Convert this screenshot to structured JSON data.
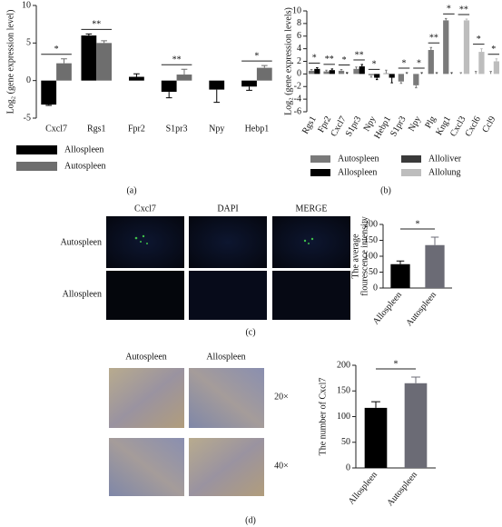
{
  "chart_data": [
    {
      "type": "bar",
      "ylabel": "Log₂ (gene expression level)",
      "categories": [
        "Cxcl7",
        "Rgs1",
        "Fpr2",
        "S1pr3",
        "Npy",
        "Hebp1"
      ],
      "series": [
        {
          "name": "Allospleen",
          "color": "#000000",
          "values": [
            -3.2,
            6.0,
            0.5,
            -1.5,
            -1.2,
            -0.8
          ],
          "errors": [
            0.1,
            0.2,
            0.4,
            0.8,
            1.7,
            0.5
          ]
        },
        {
          "name": "Autospleen",
          "color": "#6e6e6e",
          "values": [
            2.3,
            5.0,
            null,
            0.8,
            null,
            1.7
          ],
          "errors": [
            0.6,
            0.3,
            null,
            0.7,
            null,
            0.3
          ]
        }
      ],
      "significance": [
        "*",
        "**",
        null,
        "**",
        null,
        "*"
      ],
      "ylim": [
        -5,
        10
      ],
      "yticks": [
        -5,
        0,
        5,
        10
      ]
    },
    {
      "type": "bar",
      "ylabel": "Log₂ (gene expression levels)",
      "categories": [
        "Rgs1",
        "Fpr2",
        "Cxcl7",
        "S1pr3",
        "Npy",
        "Hebp1",
        "S1pr3",
        "Npy",
        "Plg",
        "Kng1",
        "Cxcl3",
        "Cxcl6",
        "Ccl9"
      ],
      "series": [
        {
          "name": "Autospleen",
          "color": "#7a7a7a",
          "values": [
            0.5,
            0.4,
            0.5,
            0.8,
            -0.2,
            0.1,
            -1.2,
            -1.8,
            3.8,
            8.5,
            0,
            0,
            0
          ],
          "errors": [
            0.2,
            0.2,
            0.2,
            0.3,
            0.3,
            0.5,
            0.3,
            0.4,
            0.4,
            0.3,
            0.2,
            0.4,
            0.4
          ]
        },
        {
          "name": "Alloliver",
          "color": "#3a3a3a",
          "values": [
            null,
            null,
            null,
            null,
            null,
            null,
            0,
            0,
            0,
            0,
            null,
            null,
            null
          ],
          "errors": [
            null,
            null,
            null,
            null,
            null,
            null,
            0.2,
            0.2,
            0.2,
            0.2,
            null,
            null,
            null
          ]
        },
        {
          "name": "Allospleen",
          "color": "#000000",
          "values": [
            0.8,
            0.6,
            0.0,
            1.2,
            -0.6,
            -0.6,
            null,
            null,
            null,
            null,
            null,
            null,
            null
          ],
          "errors": [
            0.2,
            0.2,
            0.2,
            0.3,
            0.3,
            0.8,
            null,
            null,
            null,
            null,
            null,
            null,
            null
          ]
        },
        {
          "name": "Allolung",
          "color": "#bdbdbd",
          "values": [
            null,
            null,
            null,
            null,
            null,
            null,
            null,
            null,
            null,
            null,
            8.5,
            3.5,
            2.0
          ],
          "errors": [
            null,
            null,
            null,
            null,
            null,
            null,
            null,
            null,
            null,
            null,
            0.2,
            0.5,
            0.4
          ]
        }
      ],
      "significance": [
        "*",
        "**",
        "*",
        "**",
        "*",
        null,
        "*",
        "*",
        "**",
        "*",
        "**",
        "*",
        "*"
      ],
      "ylim": [
        -6,
        10
      ],
      "yticks": [
        -6,
        -4,
        -2,
        0,
        2,
        4,
        6,
        8,
        10
      ]
    },
    {
      "type": "bar",
      "ylabel": [
        "The average",
        "flourescence intensity"
      ],
      "categories": [
        "Allospleen",
        "Autospleen"
      ],
      "values": [
        75,
        135
      ],
      "errors": [
        10,
        25
      ],
      "colors": [
        "#000000",
        "#6b6b75"
      ],
      "significance": "*",
      "ylim": [
        0,
        200
      ],
      "yticks": [
        0,
        50,
        100,
        150,
        200
      ]
    },
    {
      "type": "bar",
      "ylabel": "The number of Cxcl7",
      "categories": [
        "Allospleen",
        "Autospleen"
      ],
      "values": [
        117,
        165
      ],
      "errors": [
        12,
        12
      ],
      "colors": [
        "#000000",
        "#6b6b75"
      ],
      "significance": "*",
      "ylim": [
        0,
        200
      ],
      "yticks": [
        0,
        50,
        100,
        150,
        200
      ]
    }
  ],
  "figure": {
    "panel_labels": [
      "(a)",
      "(b)",
      "(c)",
      "(d)"
    ],
    "fluorescence": {
      "columns": [
        "Cxcl7",
        "DAPI",
        "MERGE"
      ],
      "rows": [
        "Autospleen",
        "Allospleen"
      ]
    },
    "histology": {
      "columns": [
        "Autospleen",
        "Allospleen"
      ],
      "rows": [
        "20×",
        "40×"
      ]
    }
  }
}
